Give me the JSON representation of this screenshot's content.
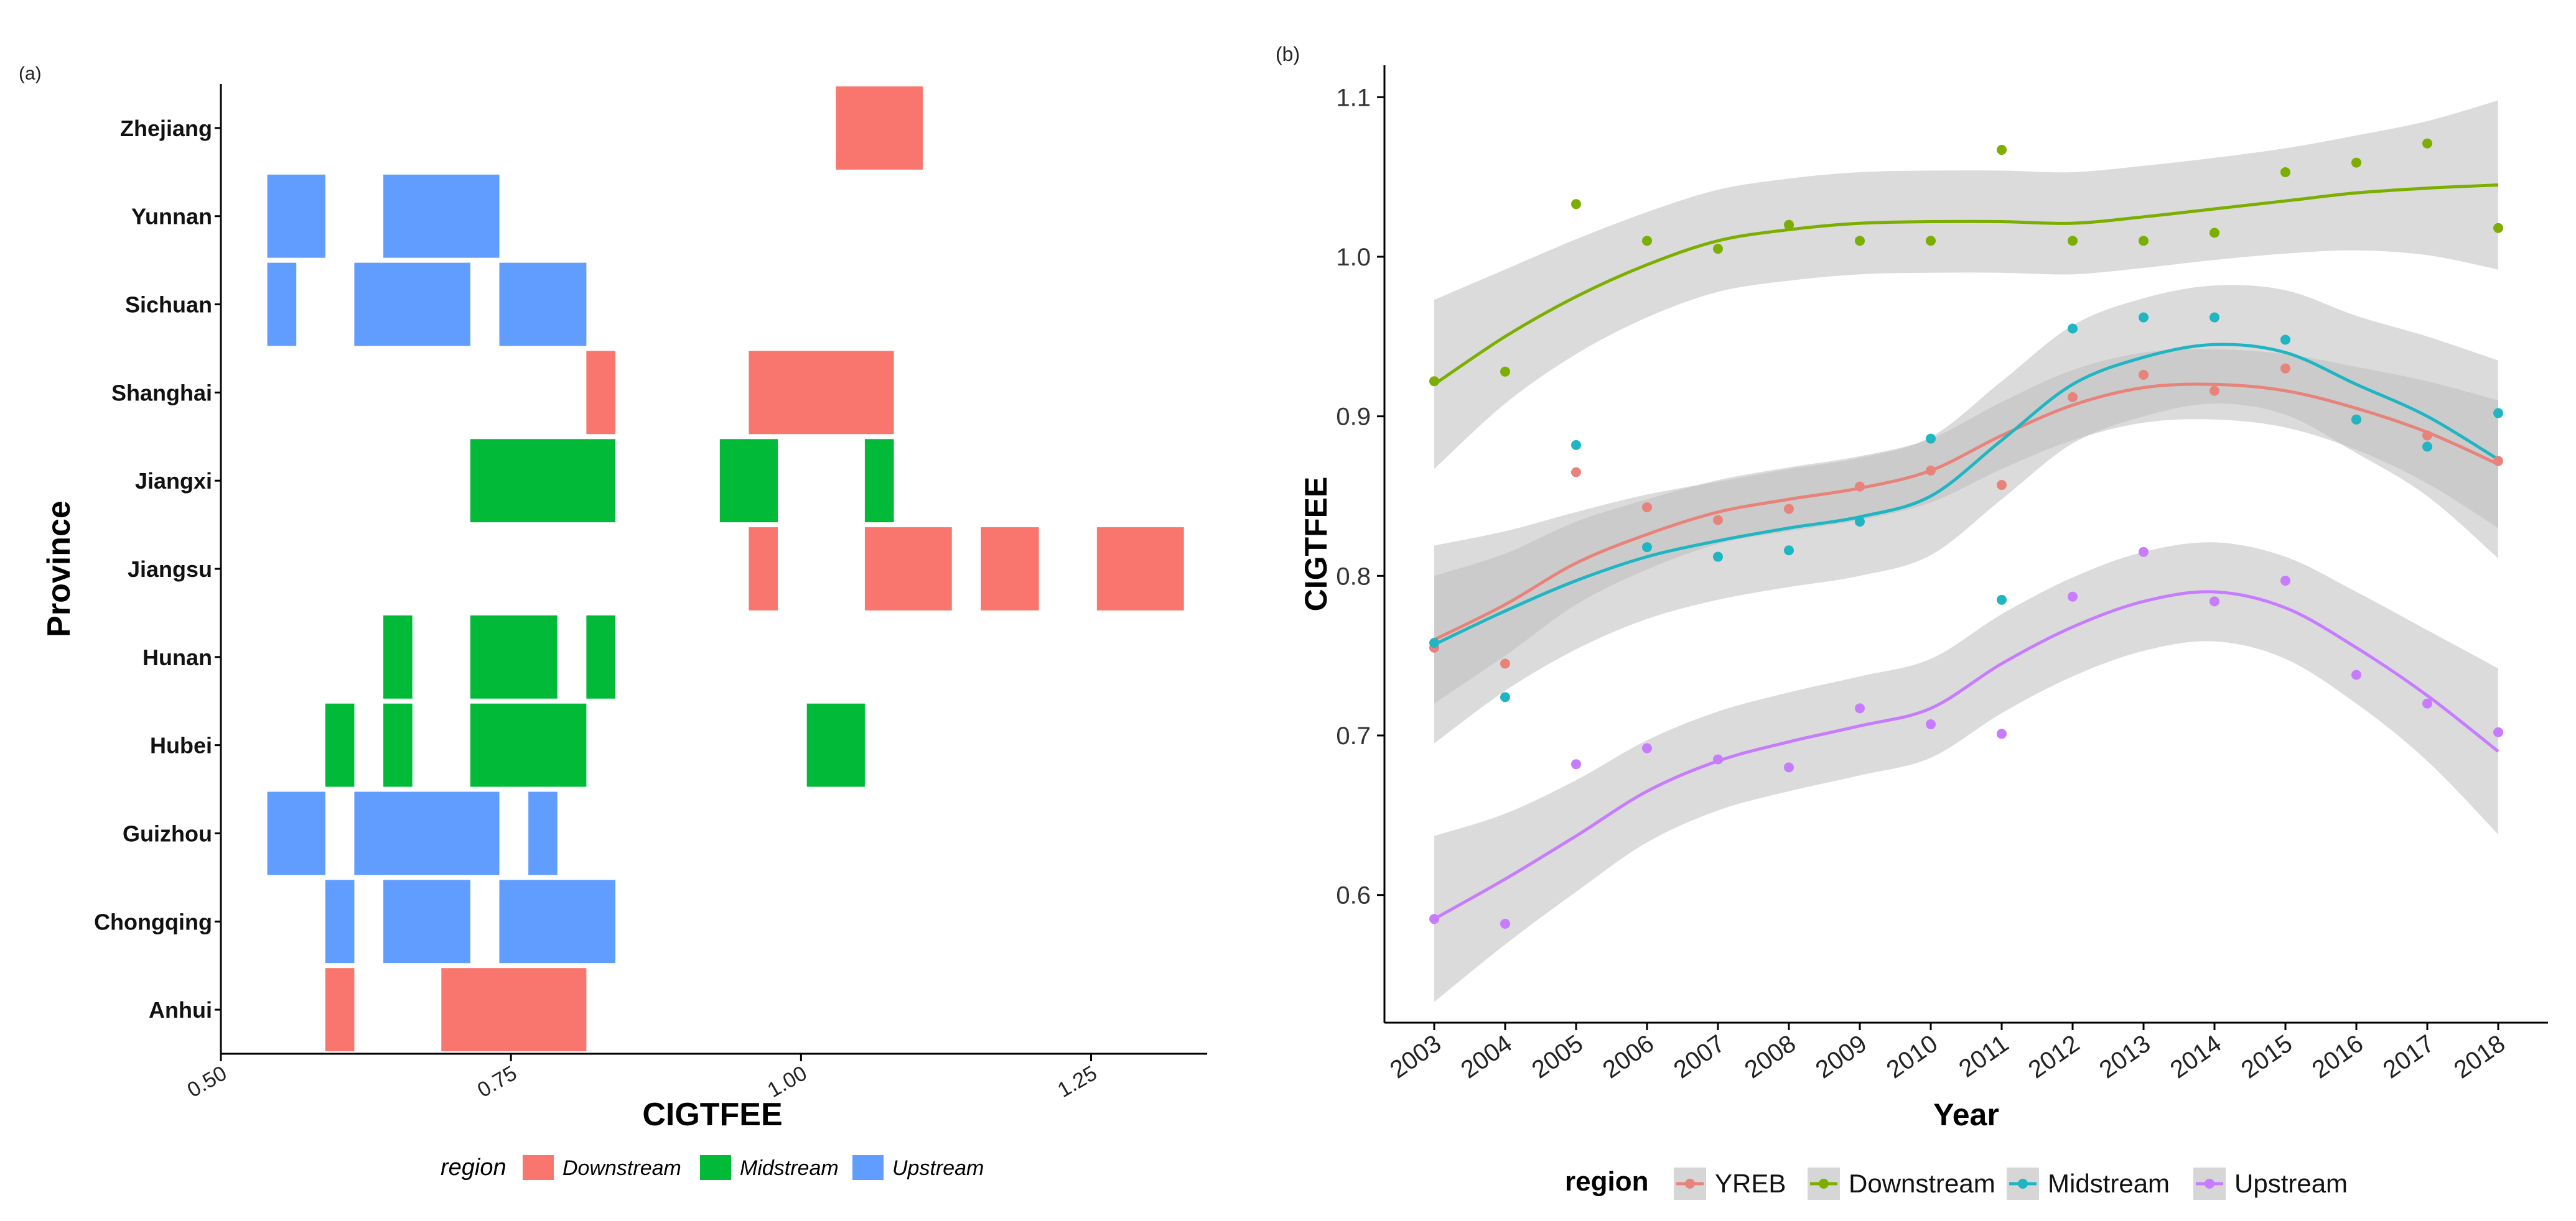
{
  "panels": {
    "a_label": "(a)",
    "b_label": "(b)"
  },
  "colors": {
    "Downstream": "#F8766D",
    "Midstream": "#00BA38",
    "Upstream": "#619CFF",
    "line_YREB": "#E7837A",
    "line_Downstream": "#7CAE00",
    "line_Midstream": "#1FB5C2",
    "line_Upstream": "#C77CFF",
    "ribbon": "#BDBDBD"
  },
  "chart_data": [
    {
      "type": "heatmap",
      "xlabel": "CIGTFEE",
      "ylabel": "Province",
      "xlim": [
        0.5,
        1.35
      ],
      "x_ticks": [
        "0.50",
        "0.75",
        "1.00",
        "1.25"
      ],
      "x_tick_values": [
        0.5,
        0.75,
        1.0,
        1.25
      ],
      "categories": [
        "Anhui",
        "Chongqing",
        "Guizhou",
        "Hubei",
        "Hunan",
        "Jiangsu",
        "Jiangxi",
        "Shanghai",
        "Sichuan",
        "Yunnan",
        "Zhejiang"
      ],
      "legend": {
        "title": "region",
        "entries": [
          "Downstream",
          "Midstream",
          "Upstream"
        ],
        "position": "bottom"
      },
      "cells": [
        {
          "province": "Zhejiang",
          "region": "Downstream",
          "ranges": [
            [
              1.03,
              1.105
            ]
          ]
        },
        {
          "province": "Yunnan",
          "region": "Upstream",
          "ranges": [
            [
              0.54,
              0.59
            ],
            [
              0.64,
              0.74
            ]
          ]
        },
        {
          "province": "Sichuan",
          "region": "Upstream",
          "ranges": [
            [
              0.54,
              0.565
            ],
            [
              0.615,
              0.715
            ],
            [
              0.74,
              0.815
            ]
          ]
        },
        {
          "province": "Shanghai",
          "region": "Downstream",
          "ranges": [
            [
              0.815,
              0.84
            ],
            [
              0.955,
              1.08
            ]
          ]
        },
        {
          "province": "Jiangxi",
          "region": "Midstream",
          "ranges": [
            [
              0.715,
              0.84
            ],
            [
              0.93,
              0.98
            ],
            [
              1.055,
              1.08
            ]
          ]
        },
        {
          "province": "Jiangsu",
          "region": "Downstream",
          "ranges": [
            [
              0.955,
              0.98
            ],
            [
              1.055,
              1.13
            ],
            [
              1.155,
              1.205
            ],
            [
              1.255,
              1.33
            ]
          ]
        },
        {
          "province": "Hunan",
          "region": "Midstream",
          "ranges": [
            [
              0.64,
              0.665
            ],
            [
              0.715,
              0.79
            ],
            [
              0.815,
              0.84
            ]
          ]
        },
        {
          "province": "Hubei",
          "region": "Midstream",
          "ranges": [
            [
              0.59,
              0.615
            ],
            [
              0.64,
              0.665
            ],
            [
              0.715,
              0.815
            ],
            [
              1.005,
              1.055
            ]
          ]
        },
        {
          "province": "Guizhou",
          "region": "Upstream",
          "ranges": [
            [
              0.54,
              0.59
            ],
            [
              0.615,
              0.74
            ],
            [
              0.765,
              0.79
            ]
          ]
        },
        {
          "province": "Chongqing",
          "region": "Upstream",
          "ranges": [
            [
              0.59,
              0.615
            ],
            [
              0.64,
              0.715
            ],
            [
              0.74,
              0.84
            ]
          ]
        },
        {
          "province": "Anhui",
          "region": "Downstream",
          "ranges": [
            [
              0.59,
              0.615
            ],
            [
              0.69,
              0.815
            ]
          ]
        }
      ]
    },
    {
      "type": "line",
      "xlabel": "Year",
      "ylabel": "CIGTFEE",
      "ylim": [
        0.52,
        1.12
      ],
      "y_ticks": [
        0.6,
        0.7,
        0.8,
        0.9,
        1.0,
        1.1
      ],
      "y_tick_labels": [
        "0.6",
        "0.7",
        "0.8",
        "0.9",
        "1.0",
        "1.1"
      ],
      "x": [
        "2003",
        "2004",
        "2005",
        "2006",
        "2007",
        "2008",
        "2009",
        "2010",
        "2011",
        "2012",
        "2013",
        "2014",
        "2015",
        "2016",
        "2017",
        "2018"
      ],
      "legend": {
        "title": "region",
        "entries": [
          "YREB",
          "Downstream",
          "Midstream",
          "Upstream"
        ],
        "position": "bottom"
      },
      "series": [
        {
          "name": "YREB",
          "points": [
            0.755,
            0.745,
            0.865,
            0.843,
            0.835,
            0.842,
            0.856,
            0.866,
            0.857,
            0.912,
            0.926,
            0.916,
            0.93,
            0.898,
            0.888,
            0.872
          ],
          "smooth": [
            0.76,
            0.782,
            0.808,
            0.826,
            0.84,
            0.848,
            0.855,
            0.866,
            0.888,
            0.907,
            0.918,
            0.92,
            0.916,
            0.905,
            0.89,
            0.87
          ],
          "se": [
            0.04,
            0.032,
            0.026,
            0.022,
            0.02,
            0.02,
            0.02,
            0.02,
            0.021,
            0.022,
            0.022,
            0.022,
            0.023,
            0.026,
            0.032,
            0.04
          ]
        },
        {
          "name": "Downstream",
          "points": [
            0.922,
            0.928,
            1.033,
            1.01,
            1.005,
            1.02,
            1.01,
            1.01,
            1.067,
            1.01,
            1.01,
            1.015,
            1.053,
            1.059,
            1.071,
            1.018
          ],
          "smooth": [
            0.92,
            0.95,
            0.975,
            0.995,
            1.01,
            1.017,
            1.021,
            1.022,
            1.022,
            1.021,
            1.025,
            1.03,
            1.035,
            1.04,
            1.043,
            1.045
          ],
          "se": [
            0.053,
            0.042,
            0.036,
            0.033,
            0.032,
            0.032,
            0.032,
            0.032,
            0.032,
            0.032,
            0.032,
            0.032,
            0.033,
            0.036,
            0.042,
            0.053
          ]
        },
        {
          "name": "Midstream",
          "points": [
            0.758,
            0.724,
            0.882,
            0.818,
            0.812,
            0.816,
            0.834,
            0.886,
            0.785,
            0.955,
            0.962,
            0.962,
            0.948,
            0.898,
            0.881,
            0.902
          ],
          "smooth": [
            0.757,
            0.778,
            0.797,
            0.812,
            0.822,
            0.83,
            0.837,
            0.85,
            0.885,
            0.92,
            0.937,
            0.945,
            0.94,
            0.92,
            0.9,
            0.873
          ],
          "se": [
            0.062,
            0.05,
            0.043,
            0.039,
            0.037,
            0.037,
            0.037,
            0.037,
            0.037,
            0.037,
            0.037,
            0.037,
            0.039,
            0.043,
            0.05,
            0.062
          ]
        },
        {
          "name": "Upstream",
          "points": [
            0.585,
            0.582,
            0.682,
            0.692,
            0.685,
            0.68,
            0.717,
            0.707,
            0.701,
            0.787,
            0.815,
            0.784,
            0.797,
            0.738,
            0.72,
            0.702
          ],
          "smooth": [
            0.585,
            0.61,
            0.637,
            0.665,
            0.684,
            0.696,
            0.706,
            0.717,
            0.745,
            0.768,
            0.784,
            0.79,
            0.78,
            0.755,
            0.725,
            0.69
          ],
          "se": [
            0.052,
            0.041,
            0.035,
            0.032,
            0.031,
            0.031,
            0.031,
            0.031,
            0.031,
            0.031,
            0.031,
            0.031,
            0.032,
            0.035,
            0.041,
            0.052
          ]
        }
      ]
    }
  ]
}
